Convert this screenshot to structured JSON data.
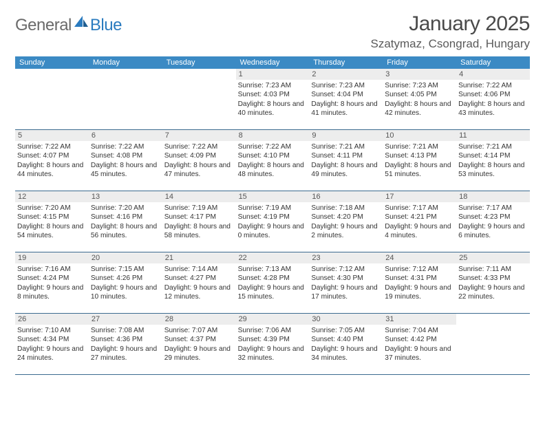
{
  "logo": {
    "word1": "General",
    "word2": "Blue"
  },
  "title": "January 2025",
  "location": "Szatymaz, Csongrad, Hungary",
  "colors": {
    "header_bg": "#3b8ac4",
    "header_text": "#ffffff",
    "daynum_bg": "#ededed",
    "daynum_text": "#555555",
    "rule": "#3b6a8f",
    "logo_gray": "#6a6a6a",
    "logo_blue": "#2a7bbf"
  },
  "weekdays": [
    "Sunday",
    "Monday",
    "Tuesday",
    "Wednesday",
    "Thursday",
    "Friday",
    "Saturday"
  ],
  "weeks": [
    [
      null,
      null,
      null,
      {
        "n": "1",
        "sunrise": "7:23 AM",
        "sunset": "4:03 PM",
        "day_h": 8,
        "day_m": 40
      },
      {
        "n": "2",
        "sunrise": "7:23 AM",
        "sunset": "4:04 PM",
        "day_h": 8,
        "day_m": 41
      },
      {
        "n": "3",
        "sunrise": "7:23 AM",
        "sunset": "4:05 PM",
        "day_h": 8,
        "day_m": 42
      },
      {
        "n": "4",
        "sunrise": "7:22 AM",
        "sunset": "4:06 PM",
        "day_h": 8,
        "day_m": 43
      }
    ],
    [
      {
        "n": "5",
        "sunrise": "7:22 AM",
        "sunset": "4:07 PM",
        "day_h": 8,
        "day_m": 44
      },
      {
        "n": "6",
        "sunrise": "7:22 AM",
        "sunset": "4:08 PM",
        "day_h": 8,
        "day_m": 45
      },
      {
        "n": "7",
        "sunrise": "7:22 AM",
        "sunset": "4:09 PM",
        "day_h": 8,
        "day_m": 47
      },
      {
        "n": "8",
        "sunrise": "7:22 AM",
        "sunset": "4:10 PM",
        "day_h": 8,
        "day_m": 48
      },
      {
        "n": "9",
        "sunrise": "7:21 AM",
        "sunset": "4:11 PM",
        "day_h": 8,
        "day_m": 49
      },
      {
        "n": "10",
        "sunrise": "7:21 AM",
        "sunset": "4:13 PM",
        "day_h": 8,
        "day_m": 51
      },
      {
        "n": "11",
        "sunrise": "7:21 AM",
        "sunset": "4:14 PM",
        "day_h": 8,
        "day_m": 53
      }
    ],
    [
      {
        "n": "12",
        "sunrise": "7:20 AM",
        "sunset": "4:15 PM",
        "day_h": 8,
        "day_m": 54
      },
      {
        "n": "13",
        "sunrise": "7:20 AM",
        "sunset": "4:16 PM",
        "day_h": 8,
        "day_m": 56
      },
      {
        "n": "14",
        "sunrise": "7:19 AM",
        "sunset": "4:17 PM",
        "day_h": 8,
        "day_m": 58
      },
      {
        "n": "15",
        "sunrise": "7:19 AM",
        "sunset": "4:19 PM",
        "day_h": 9,
        "day_m": 0
      },
      {
        "n": "16",
        "sunrise": "7:18 AM",
        "sunset": "4:20 PM",
        "day_h": 9,
        "day_m": 2
      },
      {
        "n": "17",
        "sunrise": "7:17 AM",
        "sunset": "4:21 PM",
        "day_h": 9,
        "day_m": 4
      },
      {
        "n": "18",
        "sunrise": "7:17 AM",
        "sunset": "4:23 PM",
        "day_h": 9,
        "day_m": 6
      }
    ],
    [
      {
        "n": "19",
        "sunrise": "7:16 AM",
        "sunset": "4:24 PM",
        "day_h": 9,
        "day_m": 8
      },
      {
        "n": "20",
        "sunrise": "7:15 AM",
        "sunset": "4:26 PM",
        "day_h": 9,
        "day_m": 10
      },
      {
        "n": "21",
        "sunrise": "7:14 AM",
        "sunset": "4:27 PM",
        "day_h": 9,
        "day_m": 12
      },
      {
        "n": "22",
        "sunrise": "7:13 AM",
        "sunset": "4:28 PM",
        "day_h": 9,
        "day_m": 15
      },
      {
        "n": "23",
        "sunrise": "7:12 AM",
        "sunset": "4:30 PM",
        "day_h": 9,
        "day_m": 17
      },
      {
        "n": "24",
        "sunrise": "7:12 AM",
        "sunset": "4:31 PM",
        "day_h": 9,
        "day_m": 19
      },
      {
        "n": "25",
        "sunrise": "7:11 AM",
        "sunset": "4:33 PM",
        "day_h": 9,
        "day_m": 22
      }
    ],
    [
      {
        "n": "26",
        "sunrise": "7:10 AM",
        "sunset": "4:34 PM",
        "day_h": 9,
        "day_m": 24
      },
      {
        "n": "27",
        "sunrise": "7:08 AM",
        "sunset": "4:36 PM",
        "day_h": 9,
        "day_m": 27
      },
      {
        "n": "28",
        "sunrise": "7:07 AM",
        "sunset": "4:37 PM",
        "day_h": 9,
        "day_m": 29
      },
      {
        "n": "29",
        "sunrise": "7:06 AM",
        "sunset": "4:39 PM",
        "day_h": 9,
        "day_m": 32
      },
      {
        "n": "30",
        "sunrise": "7:05 AM",
        "sunset": "4:40 PM",
        "day_h": 9,
        "day_m": 34
      },
      {
        "n": "31",
        "sunrise": "7:04 AM",
        "sunset": "4:42 PM",
        "day_h": 9,
        "day_m": 37
      },
      null
    ]
  ]
}
